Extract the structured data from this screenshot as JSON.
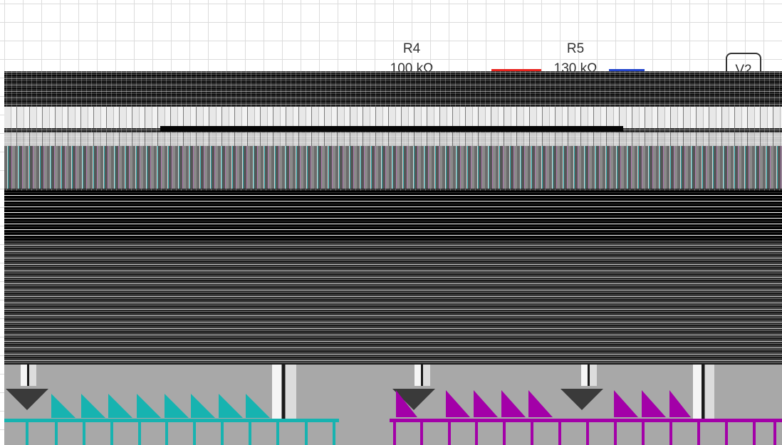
{
  "canvas": {
    "components": {
      "r4": {
        "name": "R4",
        "value": "100 kΩ"
      },
      "r5": {
        "name": "R5",
        "value": "130 kΩ"
      },
      "v2": {
        "name": "V2"
      }
    },
    "colors": {
      "wire_red": "#e8221c",
      "wire_blue": "#2244cc",
      "channel_a": "#17b3b0",
      "channel_b": "#a300a8",
      "grid": "#dcdcdc"
    }
  }
}
